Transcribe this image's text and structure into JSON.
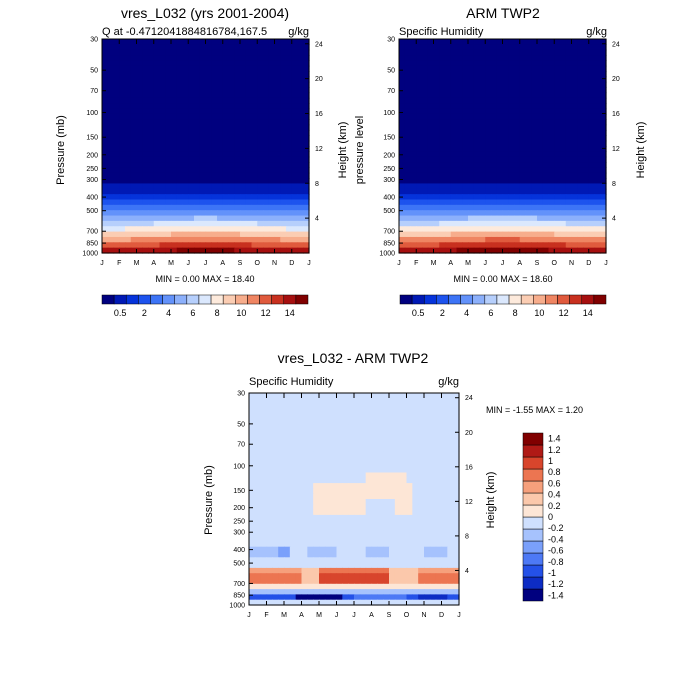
{
  "colors": {
    "cmap_main": [
      "#00007f",
      "#0019b5",
      "#0533db",
      "#1d53ee",
      "#3d74f6",
      "#6392fa",
      "#8cb0fb",
      "#b6cffc",
      "#dbe8fd",
      "#fdeadc",
      "#fbcdb3",
      "#f7ad8c",
      "#ef8562",
      "#e05a3d",
      "#c8301f",
      "#a60f0f",
      "#800000"
    ],
    "cmap_diff": [
      "#00007f",
      "#0d2cc4",
      "#2451e8",
      "#4d79f5",
      "#7aa0fb",
      "#a6c2fd",
      "#cfe0fe",
      "#fde6d6",
      "#fbc8ab",
      "#f6a07c",
      "#ec7551",
      "#d8452c",
      "#b01a16",
      "#800000"
    ]
  },
  "chart_data": [
    {
      "type": "heatmap",
      "title": "vres_L032 (yrs 2001-2004)",
      "left_subtitle": "Q at -0.4712041884816784,167.5",
      "right_subtitle": "g/kg",
      "ylabel": "Pressure (mb)",
      "y2label": "Height (km)",
      "x_ticklabels": [
        "J",
        "F",
        "M",
        "A",
        "M",
        "J",
        "J",
        "A",
        "S",
        "O",
        "N",
        "D",
        "J"
      ],
      "y_ticklabels": [
        "30",
        "50",
        "70",
        "100",
        "150",
        "200",
        "250",
        "300",
        "400",
        "500",
        "700",
        "850",
        "1000"
      ],
      "y2_ticklabels": [
        "24",
        "20",
        "16",
        "12",
        "8",
        "4"
      ],
      "stats": "MIN =   0.00 MAX =  18.40",
      "colorbar_labels": [
        "0.5",
        "2",
        "4",
        "6",
        "8",
        "10",
        "12",
        "14"
      ],
      "field": "specific humidity, near 0 above ~300 mb, increasing to ~18 g/kg at 1000 mb"
    },
    {
      "type": "heatmap",
      "title": "ARM TWP2",
      "left_subtitle": "Specific Humidity",
      "right_subtitle": "g/kg",
      "ylabel": "pressure level",
      "y2label": "Height (km)",
      "x_ticklabels": [
        "J",
        "F",
        "M",
        "A",
        "M",
        "J",
        "J",
        "A",
        "S",
        "O",
        "N",
        "D",
        "J"
      ],
      "y_ticklabels": [
        "30",
        "50",
        "70",
        "100",
        "150",
        "200",
        "250",
        "300",
        "400",
        "500",
        "700",
        "850",
        "1000"
      ],
      "y2_ticklabels": [
        "24",
        "20",
        "16",
        "12",
        "8",
        "4"
      ],
      "stats": "MIN =   0.00 MAX =  18.60",
      "colorbar_labels": [
        "0.5",
        "2",
        "4",
        "6",
        "8",
        "10",
        "12",
        "14"
      ],
      "field": "specific humidity, near 0 above ~300 mb, increasing to ~18.6 g/kg at 1000 mb"
    },
    {
      "type": "heatmap",
      "title": "vres_L032 - ARM TWP2",
      "left_subtitle": "Specific Humidity",
      "right_subtitle": "g/kg",
      "ylabel": "Pressure (mb)",
      "y2label": "Height (km)",
      "x_ticklabels": [
        "J",
        "F",
        "M",
        "A",
        "M",
        "J",
        "J",
        "A",
        "S",
        "O",
        "N",
        "D",
        "J"
      ],
      "y_ticklabels": [
        "30",
        "50",
        "70",
        "100",
        "150",
        "200",
        "250",
        "300",
        "400",
        "500",
        "700",
        "850",
        "1000"
      ],
      "y2_ticklabels": [
        "24",
        "20",
        "16",
        "12",
        "8",
        "4"
      ],
      "stats": "MIN =  -1.55 MAX =    1.20",
      "colorbar_labels": [
        "-1.4",
        "-1.2",
        "-1",
        "-0.8",
        "-0.6",
        "-0.4",
        "-0.2",
        "0",
        "0.2",
        "0.4",
        "0.6",
        "0.8",
        "1",
        "1.2",
        "1.4"
      ],
      "field": "difference; ~0 aloft, positive (~0.8-1.2) near 700 mb, negative (~-1.4) near 850 mb"
    }
  ]
}
